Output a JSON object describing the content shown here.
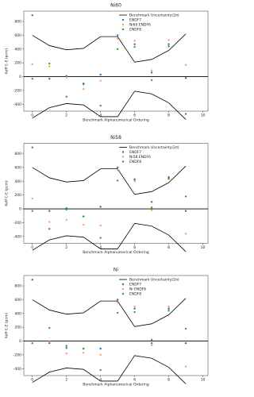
{
  "chart_data": [
    {
      "type": "scatter",
      "title": "Ni60",
      "xlabel": "Benchmark Alphanumerical Ordering",
      "ylabel": "Keff C-E (pcm)",
      "xlim": [
        -0.5,
        10.3
      ],
      "xticks": [
        0,
        2,
        4,
        6,
        8,
        10
      ],
      "ylim": [
        -500,
        950
      ],
      "yticks": [
        -400,
        -200,
        0,
        200,
        400,
        600,
        800
      ],
      "legend": "upper right",
      "x": [
        0,
        1,
        2,
        3,
        4,
        5,
        6,
        7,
        8,
        9
      ],
      "series": [
        {
          "name": "Benchmark Uncertainty(2σ)",
          "color": "#000000",
          "type": "line",
          "values": [
            600,
            450,
            390,
            410,
            580,
            580,
            210,
            250,
            380,
            620
          ],
          "lower": [
            -600,
            -450,
            -390,
            -410,
            -580,
            -580,
            -210,
            -250,
            -380,
            -620
          ]
        },
        {
          "name": "ENDF7",
          "color": "#1f77b4",
          "values": [
            890,
            -30,
            10,
            -100,
            30,
            600,
            470,
            60,
            470,
            -20
          ]
        },
        {
          "name": "Ni60 ENDF6",
          "color": "#ff9f5a",
          "values": [
            180,
            150,
            -10,
            -180,
            -60,
            550,
            520,
            90,
            530,
            170
          ]
        },
        {
          "name": "ENDF8",
          "color": "#2ca02c",
          "values": [
            -30,
            190,
            -290,
            -110,
            -420,
            400,
            430,
            -50,
            440,
            -540
          ]
        }
      ]
    },
    {
      "type": "scatter",
      "title": "Ni58",
      "xlabel": "Benchmark Alphanumerical Ordering",
      "ylabel": "Keff C-E (pcm)",
      "xlim": [
        -0.5,
        10.3
      ],
      "xticks": [
        0,
        2,
        4,
        6,
        8,
        10
      ],
      "ylim": [
        -500,
        950
      ],
      "yticks": [
        -400,
        -200,
        0,
        200,
        400,
        600,
        800
      ],
      "legend": "upper right",
      "x": [
        0,
        1,
        2,
        3,
        4,
        5,
        6,
        7,
        8,
        9
      ],
      "series": [
        {
          "name": "Benchmark Uncertainty(2σ)",
          "color": "#000000",
          "type": "line",
          "values": [
            600,
            450,
            390,
            410,
            580,
            580,
            210,
            250,
            380,
            620
          ],
          "lower": [
            -600,
            -450,
            -390,
            -410,
            -580,
            -580,
            -210,
            -250,
            -380,
            -620
          ]
        },
        {
          "name": "ENDF7",
          "color": "#1f77b4",
          "values": [
            890,
            -30,
            10,
            -110,
            30,
            600,
            420,
            100,
            460,
            -30
          ]
        },
        {
          "name": "Ni58 ENDF6",
          "color": "#ff9f5a",
          "values": [
            150,
            -190,
            -160,
            -230,
            -240,
            560,
            400,
            -20,
            430,
            -360
          ]
        },
        {
          "name": "ENDF8",
          "color": "#2ca02c",
          "values": [
            -30,
            -290,
            -10,
            -110,
            -420,
            410,
            430,
            20,
            440,
            180
          ]
        }
      ]
    },
    {
      "type": "scatter",
      "title": "Ni",
      "xlabel": "Benchmark Alphanumerical Ordering",
      "ylabel": "Keff C-E (pcm)",
      "xlim": [
        -0.5,
        10.3
      ],
      "xticks": [
        0,
        2,
        4,
        6,
        8,
        10
      ],
      "ylim": [
        -500,
        950
      ],
      "yticks": [
        -400,
        -200,
        0,
        200,
        400,
        600,
        800
      ],
      "legend": "upper right",
      "x": [
        0,
        1,
        2,
        3,
        4,
        5,
        6,
        7,
        8,
        9
      ],
      "series": [
        {
          "name": "Benchmark Uncertainty(2σ)",
          "color": "#000000",
          "type": "line",
          "values": [
            600,
            450,
            390,
            410,
            580,
            580,
            210,
            250,
            380,
            620
          ],
          "lower": [
            -600,
            -450,
            -390,
            -410,
            -580,
            -580,
            -210,
            -250,
            -380,
            -620
          ]
        },
        {
          "name": "ENDF7",
          "color": "#1f77b4",
          "values": [
            890,
            -30,
            -100,
            -110,
            -110,
            600,
            470,
            -30,
            470,
            -30
          ]
        },
        {
          "name": "Ni ENDF6",
          "color": "#ff9f5a",
          "values": [
            -30,
            -10,
            -180,
            -170,
            -200,
            560,
            500,
            -60,
            500,
            -370
          ]
        },
        {
          "name": "ENDF8",
          "color": "#2ca02c",
          "values": [
            -30,
            190,
            -70,
            -110,
            -420,
            410,
            420,
            20,
            440,
            180
          ]
        }
      ]
    }
  ]
}
